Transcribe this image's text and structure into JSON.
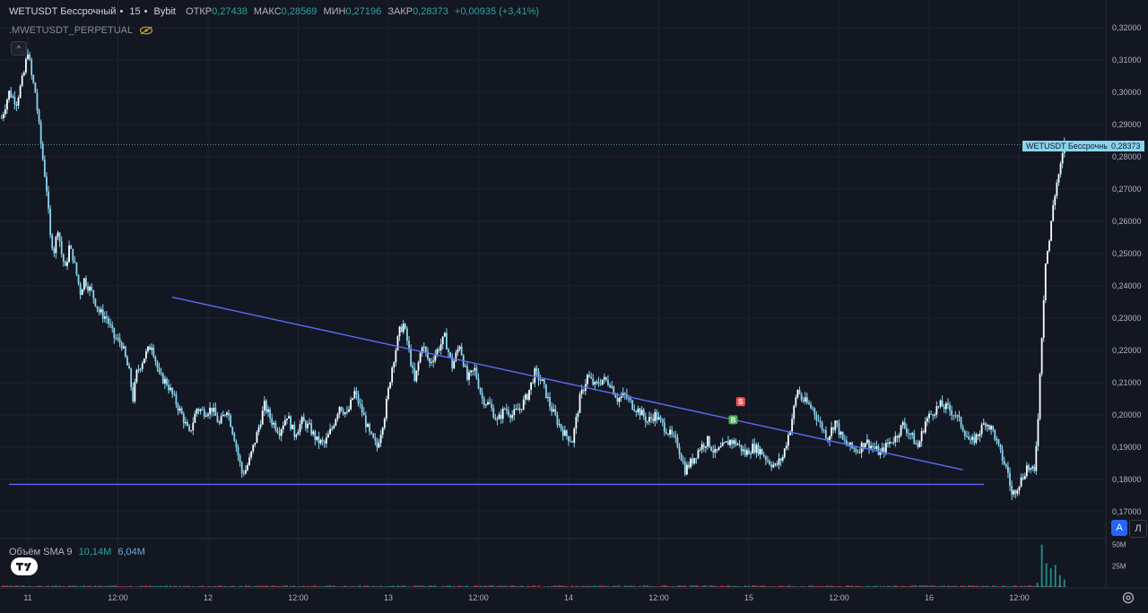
{
  "legend": {
    "symbol": "WETUSDT Бессрочный",
    "interval": "15",
    "exchange": "Bybit",
    "open_label": "ОТКР",
    "open": "0,27438",
    "high_label": "МАКС",
    "high": "0,28569",
    "low_label": "МИН",
    "low": "0,27196",
    "close_label": "ЗАКР",
    "close": "0,28373",
    "change": "+0,00935 (+3,41%)",
    "indicator": ".MWETUSDT_PERPETUAL"
  },
  "price_tag": {
    "label": "WETUSDT Бессрочный",
    "value": "0,28373"
  },
  "volume_legend": {
    "label": "Объём SMA 9",
    "value1": "10,14M",
    "value2": "6,04M"
  },
  "buttons": {
    "auto": "A",
    "log": "Л"
  },
  "colors": {
    "up": "#26a69a",
    "down": "#ffffff",
    "trend": "#5b6cf0",
    "candle_up": "#ffffff",
    "candle_wick": "#87d5ee",
    "bg": "#131722"
  },
  "chart_data": {
    "type": "candlestick",
    "y_axis": {
      "min": 0.165,
      "max": 0.323,
      "ticks": [
        "0,32000",
        "0,31000",
        "0,30000",
        "0,29000",
        "0,28000",
        "0,27000",
        "0,26000",
        "0,25000",
        "0,24000",
        "0,23000",
        "0,22000",
        "0,21000",
        "0,20000",
        "0,19000",
        "0,18000",
        "0,17000"
      ],
      "tick_values": [
        0.32,
        0.31,
        0.3,
        0.29,
        0.28,
        0.27,
        0.26,
        0.25,
        0.24,
        0.23,
        0.22,
        0.21,
        0.2,
        0.19,
        0.18,
        0.17
      ]
    },
    "x_axis": {
      "labels": [
        "11",
        "12:00",
        "12",
        "12:00",
        "13",
        "12:00",
        "14",
        "12:00",
        "15",
        "12:00",
        "16",
        "12:00"
      ],
      "label_positions_hours": [
        0,
        12,
        24,
        36,
        48,
        60,
        72,
        84,
        96,
        108,
        120,
        132
      ],
      "range_hours": [
        -3.6,
        146.5
      ]
    },
    "price_path": [
      [
        -3.5,
        0.292
      ],
      [
        -2.5,
        0.3
      ],
      [
        -1.5,
        0.297
      ],
      [
        -0.5,
        0.306
      ],
      [
        0.0,
        0.313
      ],
      [
        0.5,
        0.305
      ],
      [
        1.0,
        0.3
      ],
      [
        1.8,
        0.283
      ],
      [
        2.5,
        0.27
      ],
      [
        3.0,
        0.255
      ],
      [
        3.5,
        0.251
      ],
      [
        4.0,
        0.258
      ],
      [
        4.5,
        0.25
      ],
      [
        5.0,
        0.245
      ],
      [
        5.5,
        0.252
      ],
      [
        6.0,
        0.249
      ],
      [
        7.0,
        0.238
      ],
      [
        7.5,
        0.242
      ],
      [
        8.5,
        0.238
      ],
      [
        9.5,
        0.232
      ],
      [
        10.5,
        0.23
      ],
      [
        11.5,
        0.224
      ],
      [
        12.5,
        0.222
      ],
      [
        13.5,
        0.213
      ],
      [
        14.0,
        0.205
      ],
      [
        14.5,
        0.213
      ],
      [
        15.5,
        0.218
      ],
      [
        16.5,
        0.222
      ],
      [
        17.5,
        0.212
      ],
      [
        18.5,
        0.21
      ],
      [
        19.5,
        0.205
      ],
      [
        20.5,
        0.2
      ],
      [
        21.5,
        0.194
      ],
      [
        22.5,
        0.202
      ],
      [
        23.5,
        0.201
      ],
      [
        24.5,
        0.202
      ],
      [
        25.5,
        0.197
      ],
      [
        26.5,
        0.202
      ],
      [
        27.5,
        0.193
      ],
      [
        28.5,
        0.182
      ],
      [
        29.0,
        0.183
      ],
      [
        29.5,
        0.186
      ],
      [
        30.5,
        0.194
      ],
      [
        31.5,
        0.203
      ],
      [
        32.5,
        0.198
      ],
      [
        33.5,
        0.195
      ],
      [
        34.5,
        0.2
      ],
      [
        35.5,
        0.194
      ],
      [
        36.5,
        0.198
      ],
      [
        37.5,
        0.196
      ],
      [
        38.5,
        0.192
      ],
      [
        39.5,
        0.191
      ],
      [
        40.5,
        0.196
      ],
      [
        41.5,
        0.203
      ],
      [
        42.5,
        0.2
      ],
      [
        43.5,
        0.207
      ],
      [
        44.5,
        0.201
      ],
      [
        45.5,
        0.194
      ],
      [
        46.5,
        0.19
      ],
      [
        47.5,
        0.2
      ],
      [
        48.5,
        0.215
      ],
      [
        49.5,
        0.226
      ],
      [
        50.0,
        0.228
      ],
      [
        50.5,
        0.223
      ],
      [
        51.5,
        0.21
      ],
      [
        52.5,
        0.222
      ],
      [
        53.5,
        0.216
      ],
      [
        54.5,
        0.22
      ],
      [
        55.5,
        0.224
      ],
      [
        56.5,
        0.215
      ],
      [
        57.5,
        0.222
      ],
      [
        58.5,
        0.211
      ],
      [
        59.5,
        0.214
      ],
      [
        60.5,
        0.205
      ],
      [
        61.5,
        0.203
      ],
      [
        62.5,
        0.198
      ],
      [
        63.5,
        0.202
      ],
      [
        64.5,
        0.2
      ],
      [
        65.5,
        0.202
      ],
      [
        66.5,
        0.206
      ],
      [
        67.5,
        0.213
      ],
      [
        68.5,
        0.21
      ],
      [
        69.5,
        0.203
      ],
      [
        70.5,
        0.198
      ],
      [
        71.5,
        0.194
      ],
      [
        72.5,
        0.192
      ],
      [
        73.5,
        0.205
      ],
      [
        74.5,
        0.212
      ],
      [
        75.5,
        0.209
      ],
      [
        76.5,
        0.211
      ],
      [
        77.5,
        0.21
      ],
      [
        78.5,
        0.205
      ],
      [
        79.5,
        0.206
      ],
      [
        80.5,
        0.203
      ],
      [
        81.5,
        0.201
      ],
      [
        82.5,
        0.198
      ],
      [
        83.5,
        0.2
      ],
      [
        84.5,
        0.197
      ],
      [
        85.5,
        0.194
      ],
      [
        86.5,
        0.191
      ],
      [
        87.5,
        0.183
      ],
      [
        88.5,
        0.186
      ],
      [
        89.5,
        0.19
      ],
      [
        90.5,
        0.192
      ],
      [
        91.5,
        0.188
      ],
      [
        92.5,
        0.19
      ],
      [
        93.5,
        0.192
      ],
      [
        94.5,
        0.191
      ],
      [
        95.5,
        0.188
      ],
      [
        96.5,
        0.19
      ],
      [
        97.5,
        0.189
      ],
      [
        98.5,
        0.186
      ],
      [
        99.5,
        0.184
      ],
      [
        100.5,
        0.187
      ],
      [
        101.5,
        0.196
      ],
      [
        102.5,
        0.208
      ],
      [
        103.0,
        0.205
      ],
      [
        103.5,
        0.204
      ],
      [
        104.5,
        0.202
      ],
      [
        105.5,
        0.197
      ],
      [
        106.5,
        0.193
      ],
      [
        107.5,
        0.198
      ],
      [
        108.5,
        0.192
      ],
      [
        109.5,
        0.19
      ],
      [
        110.5,
        0.189
      ],
      [
        111.5,
        0.192
      ],
      [
        112.5,
        0.19
      ],
      [
        113.5,
        0.188
      ],
      [
        114.5,
        0.191
      ],
      [
        115.5,
        0.193
      ],
      [
        116.5,
        0.197
      ],
      [
        117.5,
        0.194
      ],
      [
        118.5,
        0.19
      ],
      [
        119.5,
        0.198
      ],
      [
        120.5,
        0.201
      ],
      [
        121.5,
        0.203
      ],
      [
        122.5,
        0.202
      ],
      [
        123.5,
        0.2
      ],
      [
        124.5,
        0.196
      ],
      [
        125.5,
        0.191
      ],
      [
        126.5,
        0.194
      ],
      [
        127.5,
        0.198
      ],
      [
        128.5,
        0.195
      ],
      [
        129.5,
        0.188
      ],
      [
        130.5,
        0.182
      ],
      [
        131.0,
        0.175
      ],
      [
        131.5,
        0.177
      ],
      [
        132.5,
        0.181
      ],
      [
        133.0,
        0.184
      ],
      [
        133.5,
        0.183
      ],
      [
        134.0,
        0.182
      ],
      [
        134.5,
        0.2
      ],
      [
        135.0,
        0.225
      ],
      [
        135.5,
        0.248
      ],
      [
        136.0,
        0.254
      ],
      [
        136.5,
        0.265
      ],
      [
        137.0,
        0.272
      ],
      [
        137.5,
        0.277
      ],
      [
        138.0,
        0.28373
      ]
    ],
    "last_close": 0.28373,
    "trendlines": [
      {
        "name": "resistance",
        "from": [
          19.2,
          0.2365
        ],
        "to": [
          124.5,
          0.183
        ]
      },
      {
        "name": "support",
        "from": [
          -2.5,
          0.1785
        ],
        "to": [
          127.3,
          0.1785
        ]
      }
    ],
    "markers": [
      {
        "label": "S",
        "x": 94.9,
        "y": 0.2041,
        "color": "#f05350"
      },
      {
        "label": "B",
        "x": 93.9,
        "y": 0.1985,
        "color": "#4caf50"
      }
    ],
    "volume_axis": {
      "ticks": [
        "50M",
        "25M"
      ],
      "tick_values": [
        50,
        25
      ],
      "max": 55
    },
    "volume_spikes": [
      [
        134.4,
        5
      ],
      [
        135.0,
        50
      ],
      [
        135.6,
        28
      ],
      [
        136.2,
        22
      ],
      [
        136.8,
        26
      ],
      [
        137.4,
        14
      ],
      [
        138.0,
        9
      ]
    ]
  }
}
